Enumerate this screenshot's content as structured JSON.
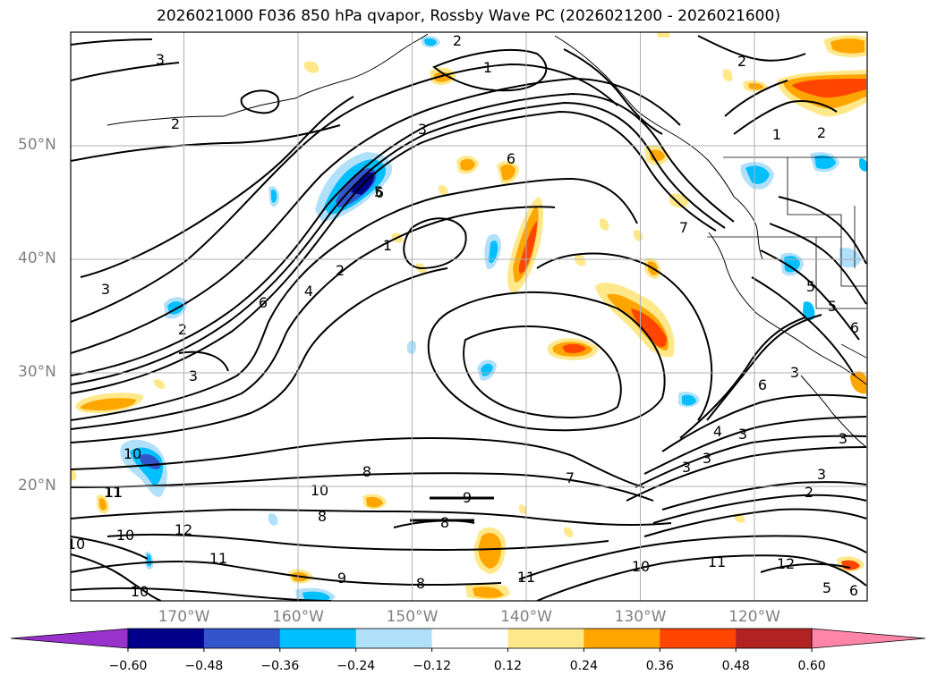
{
  "title": "2026021000 F036 850 hPa qvapor, Rossby Wave PC (2026021200 - 2026021600)",
  "lat_labels": [
    "50°N",
    "40°N",
    "30°N",
    "20°N"
  ],
  "lat_values": [
    50,
    40,
    30,
    20
  ],
  "lon_labels": [
    "170°W",
    "160°W",
    "150°W",
    "140°W",
    "130°W",
    "120°W"
  ],
  "lon_values": [
    -170,
    -160,
    -150,
    -140,
    -130,
    -120
  ],
  "colorbar": {
    "tick_labels": [
      "−0.60",
      "−0.48",
      "−0.36",
      "−0.24",
      "−0.12",
      "0.12",
      "0.24",
      "0.36",
      "0.48",
      "0.60"
    ],
    "colors": [
      "#9932cc",
      "#00008b",
      "#3355cc",
      "#00bfff",
      "#b0e0fa",
      "#ffffff",
      "#ffe88a",
      "#ffa500",
      "#ff4500",
      "#b22222",
      "#ff85a8"
    ]
  },
  "contour_labels": [
    "2",
    "3",
    "1",
    "2",
    "3",
    "2",
    "6",
    "5",
    "1",
    "4",
    "7",
    "2",
    "3",
    "1",
    "6",
    "2",
    "3",
    "6",
    "6",
    "8",
    "10",
    "8",
    "9",
    "8",
    "7",
    "3",
    "3",
    "3",
    "4",
    "3",
    "2",
    "10",
    "11",
    "10",
    "12",
    "11",
    "9",
    "10",
    "8",
    "11",
    "11",
    "12",
    "10",
    "5",
    "5",
    "6",
    "5",
    "3",
    "2",
    "3",
    "6",
    "10",
    "11"
  ]
}
